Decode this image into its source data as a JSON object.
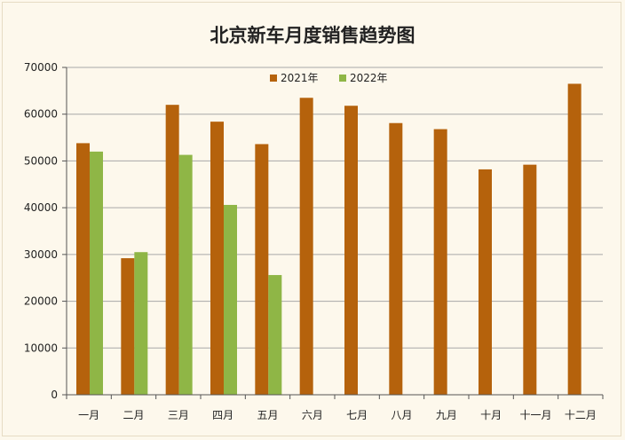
{
  "chart_data": {
    "type": "bar",
    "title": "北京新车月度销售趋势图",
    "xlabel": "",
    "ylabel": "",
    "categories": [
      "一月",
      "二月",
      "三月",
      "四月",
      "五月",
      "六月",
      "七月",
      "八月",
      "九月",
      "十月",
      "十一月",
      "十二月"
    ],
    "series": [
      {
        "name": "2021年",
        "color": "#b5620c",
        "values": [
          53800,
          29200,
          62000,
          58400,
          53600,
          63500,
          61800,
          58100,
          56800,
          48200,
          49200,
          66500
        ]
      },
      {
        "name": "2022年",
        "color": "#8fb646",
        "values": [
          52000,
          30500,
          51300,
          40600,
          25600,
          null,
          null,
          null,
          null,
          null,
          null,
          null
        ]
      }
    ],
    "ylim": [
      0,
      70000
    ],
    "yticks": [
      "0",
      "10000",
      "20000",
      "30000",
      "40000",
      "50000",
      "60000",
      "70000"
    ],
    "grid": true,
    "legend": "top-center"
  }
}
